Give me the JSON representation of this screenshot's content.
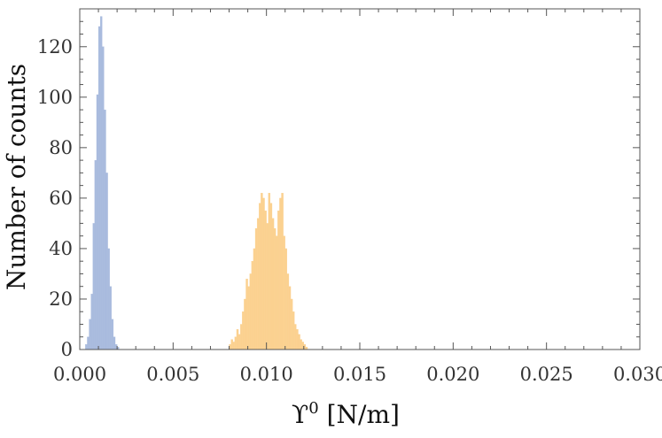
{
  "chart_data": {
    "type": "bar",
    "title": "",
    "xlabel": "ϒ",
    "xlabel_sup": "0",
    "xlabel_unit": " [N/m]",
    "ylabel": "Number of counts",
    "xlim": [
      0.0,
      0.03
    ],
    "ylim": [
      0,
      135
    ],
    "xticks": [
      "0.000",
      "0.005",
      "0.010",
      "0.015",
      "0.020",
      "0.025",
      "0.030"
    ],
    "yticks": [
      "0",
      "20",
      "40",
      "60",
      "80",
      "100",
      "120"
    ],
    "grid": false,
    "legend": "none",
    "bin_width": 0.0001,
    "series": [
      {
        "color": "#a9bbde",
        "x": [
          0.0003,
          0.0004,
          0.0005,
          0.0006,
          0.0007,
          0.0008,
          0.0009,
          0.001,
          0.0011,
          0.0012,
          0.0013,
          0.0014,
          0.0015,
          0.0016,
          0.0017,
          0.0018,
          0.0019,
          0.002
        ],
        "values": [
          2,
          5,
          12,
          22,
          50,
          75,
          101,
          128,
          132,
          120,
          95,
          70,
          40,
          25,
          12,
          5,
          2,
          1
        ]
      },
      {
        "color": "#fbd190",
        "x": [
          0.008,
          0.0081,
          0.0082,
          0.0083,
          0.0084,
          0.0085,
          0.0086,
          0.0087,
          0.0088,
          0.0089,
          0.009,
          0.0091,
          0.0092,
          0.0093,
          0.0094,
          0.0095,
          0.0096,
          0.0097,
          0.0098,
          0.0099,
          0.01,
          0.0101,
          0.0102,
          0.0103,
          0.0104,
          0.0105,
          0.0106,
          0.0107,
          0.0108,
          0.0109,
          0.011,
          0.0111,
          0.0112,
          0.0113,
          0.0114,
          0.0115,
          0.0116,
          0.0117,
          0.0118,
          0.0119,
          0.012,
          0.0121
        ],
        "values": [
          2,
          4,
          3,
          5,
          8,
          6,
          10,
          15,
          20,
          28,
          25,
          30,
          35,
          40,
          48,
          52,
          58,
          62,
          60,
          55,
          50,
          62,
          58,
          52,
          48,
          45,
          55,
          60,
          62,
          45,
          40,
          30,
          25,
          20,
          15,
          10,
          8,
          6,
          4,
          3,
          2,
          1
        ]
      }
    ]
  }
}
